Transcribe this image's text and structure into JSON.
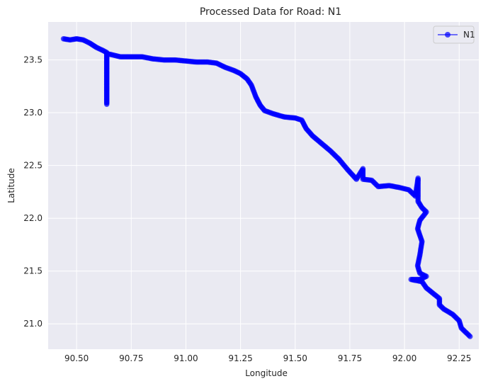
{
  "chart_data": {
    "type": "line",
    "title": "Processed Data for Road: N1",
    "xlabel": "Longitude",
    "ylabel": "Latitude",
    "xlim": [
      90.37,
      92.34
    ],
    "ylim": [
      20.76,
      23.86
    ],
    "xticks": [
      90.5,
      90.75,
      91.0,
      91.25,
      91.5,
      91.75,
      92.0,
      92.25
    ],
    "xtick_labels": [
      "90.50",
      "90.75",
      "91.00",
      "91.25",
      "91.50",
      "91.75",
      "92.00",
      "92.25"
    ],
    "yticks": [
      21.0,
      21.5,
      22.0,
      22.5,
      23.0,
      23.5
    ],
    "ytick_labels": [
      "21.0",
      "21.5",
      "22.0",
      "22.5",
      "23.0",
      "23.5"
    ],
    "grid": true,
    "legend_position": "top-right",
    "series": [
      {
        "name": "N1",
        "color": "#0000ff",
        "marker": "circle",
        "points": [
          [
            90.44,
            23.7
          ],
          [
            90.47,
            23.69
          ],
          [
            90.5,
            23.7
          ],
          [
            90.53,
            23.69
          ],
          [
            90.56,
            23.66
          ],
          [
            90.59,
            23.62
          ],
          [
            90.62,
            23.59
          ],
          [
            90.638,
            23.57
          ],
          [
            90.638,
            23.08
          ],
          [
            90.638,
            23.56
          ],
          [
            90.66,
            23.55
          ],
          [
            90.7,
            23.53
          ],
          [
            90.75,
            23.53
          ],
          [
            90.8,
            23.53
          ],
          [
            90.85,
            23.51
          ],
          [
            90.9,
            23.5
          ],
          [
            90.95,
            23.5
          ],
          [
            91.0,
            23.49
          ],
          [
            91.05,
            23.48
          ],
          [
            91.1,
            23.48
          ],
          [
            91.14,
            23.47
          ],
          [
            91.18,
            23.43
          ],
          [
            91.22,
            23.4
          ],
          [
            91.25,
            23.37
          ],
          [
            91.28,
            23.32
          ],
          [
            91.3,
            23.26
          ],
          [
            91.32,
            23.15
          ],
          [
            91.34,
            23.07
          ],
          [
            91.36,
            23.02
          ],
          [
            91.4,
            22.99
          ],
          [
            91.45,
            22.96
          ],
          [
            91.5,
            22.95
          ],
          [
            91.53,
            22.93
          ],
          [
            91.55,
            22.85
          ],
          [
            91.58,
            22.78
          ],
          [
            91.62,
            22.71
          ],
          [
            91.66,
            22.64
          ],
          [
            91.7,
            22.56
          ],
          [
            91.74,
            22.46
          ],
          [
            91.78,
            22.37
          ],
          [
            91.81,
            22.47
          ],
          [
            91.81,
            22.37
          ],
          [
            91.85,
            22.36
          ],
          [
            91.88,
            22.3
          ],
          [
            91.93,
            22.31
          ],
          [
            91.98,
            22.29
          ],
          [
            92.02,
            22.27
          ],
          [
            92.05,
            22.21
          ],
          [
            92.062,
            22.38
          ],
          [
            92.062,
            22.16
          ],
          [
            92.08,
            22.1
          ],
          [
            92.1,
            22.06
          ],
          [
            92.07,
            21.98
          ],
          [
            92.06,
            21.9
          ],
          [
            92.08,
            21.78
          ],
          [
            92.07,
            21.65
          ],
          [
            92.06,
            21.55
          ],
          [
            92.07,
            21.48
          ],
          [
            92.1,
            21.45
          ],
          [
            92.07,
            21.42
          ],
          [
            92.03,
            21.42
          ],
          [
            92.08,
            21.4
          ],
          [
            92.1,
            21.34
          ],
          [
            92.13,
            21.29
          ],
          [
            92.16,
            21.24
          ],
          [
            92.16,
            21.18
          ],
          [
            92.18,
            21.14
          ],
          [
            92.22,
            21.09
          ],
          [
            92.25,
            21.03
          ],
          [
            92.26,
            20.96
          ],
          [
            92.28,
            20.92
          ],
          [
            92.3,
            20.88
          ]
        ]
      }
    ]
  }
}
